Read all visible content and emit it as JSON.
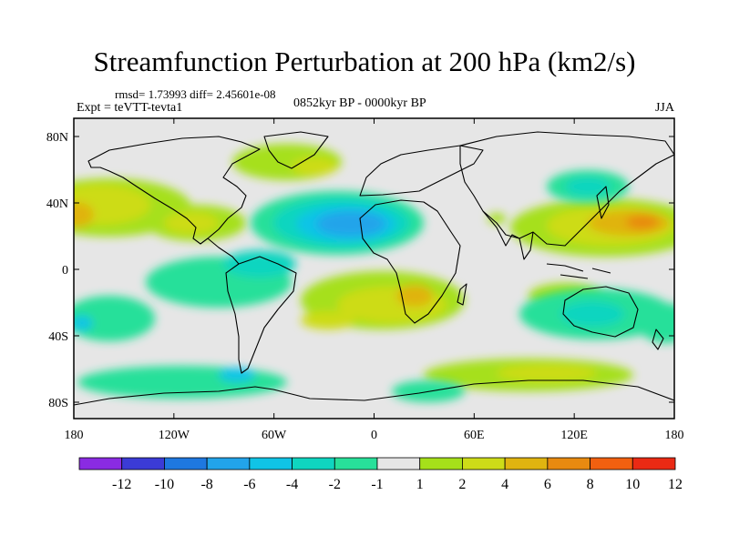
{
  "header": {
    "title": "Streamfunction Perturbation at 200 hPa (km2/s)",
    "stats": "rmsd= 1.73993  diff= 2.45601e-08",
    "experiment": "Expt = teVTT-tevta1",
    "period": "0852kyr BP - 0000kyr BP",
    "season": "JJA"
  },
  "map": {
    "x_ticks": [
      "180",
      "120W",
      "60W",
      "0",
      "60E",
      "120E",
      "180"
    ],
    "y_ticks": [
      "80N",
      "40N",
      "0",
      "40S",
      "80S"
    ],
    "background_color": "#e6e6e6"
  },
  "colorbar": {
    "labels": [
      "-12",
      "-10",
      "-8",
      "-6",
      "-4",
      "-2",
      "-1",
      "1",
      "2",
      "4",
      "6",
      "8",
      "10",
      "12"
    ],
    "colors": [
      "#8a2be2",
      "#3b3bd6",
      "#1e78e0",
      "#22a4ea",
      "#10c4e6",
      "#0fd5c0",
      "#28e09a",
      "#e6e6e6",
      "#a6e01a",
      "#cddc18",
      "#e0b410",
      "#e88a10",
      "#f26010",
      "#ea2a14"
    ]
  }
}
